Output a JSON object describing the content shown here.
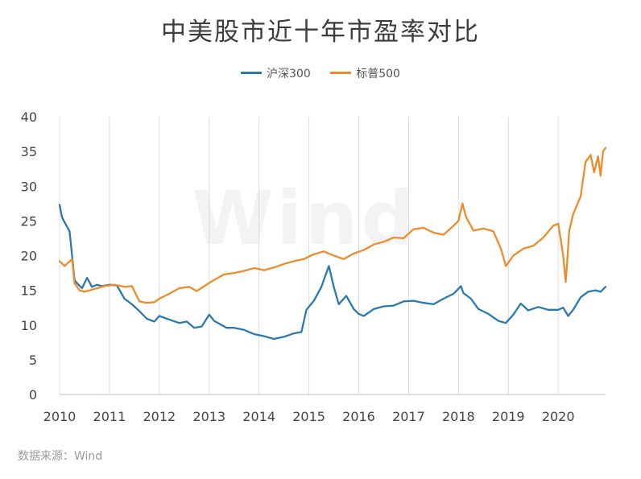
{
  "chart_data": {
    "type": "line",
    "title": "中美股市近十年市盈率对比",
    "xlabel": "",
    "ylabel": "",
    "ylim": [
      0,
      40
    ],
    "yticks": [
      0,
      5,
      10,
      15,
      20,
      25,
      30,
      35,
      40
    ],
    "xlim": [
      2010,
      2020.95
    ],
    "xticks": [
      "2010",
      "2011",
      "2012",
      "2013",
      "2014",
      "2015",
      "2016",
      "2017",
      "2018",
      "2019",
      "2020"
    ],
    "grid": "vertical",
    "legend_position": "top",
    "series": [
      {
        "name": "沪深300",
        "color": "#2a7ab0",
        "x": [
          2010.0,
          2010.05,
          2010.1,
          2010.2,
          2010.3,
          2010.35,
          2010.45,
          2010.55,
          2010.65,
          2010.75,
          2010.85,
          2011.0,
          2011.15,
          2011.3,
          2011.45,
          2011.6,
          2011.75,
          2011.9,
          2012.0,
          2012.2,
          2012.4,
          2012.55,
          2012.7,
          2012.85,
          2013.0,
          2013.1,
          2013.2,
          2013.35,
          2013.5,
          2013.7,
          2013.9,
          2014.1,
          2014.3,
          2014.5,
          2014.7,
          2014.85,
          2014.95,
          2015.1,
          2015.25,
          2015.4,
          2015.5,
          2015.6,
          2015.75,
          2015.9,
          2016.0,
          2016.1,
          2016.3,
          2016.5,
          2016.7,
          2016.9,
          2017.1,
          2017.3,
          2017.5,
          2017.7,
          2017.9,
          2018.05,
          2018.1,
          2018.25,
          2018.4,
          2018.6,
          2018.8,
          2018.95,
          2019.1,
          2019.25,
          2019.4,
          2019.6,
          2019.8,
          2020.0,
          2020.1,
          2020.2,
          2020.3,
          2020.45,
          2020.6,
          2020.75,
          2020.85,
          2020.95
        ],
        "y": [
          27.3,
          25.5,
          24.8,
          23.5,
          16.5,
          16.0,
          15.3,
          16.8,
          15.5,
          15.8,
          15.6,
          15.8,
          15.7,
          13.8,
          13.0,
          12.0,
          10.9,
          10.5,
          11.3,
          10.8,
          10.3,
          10.5,
          9.6,
          9.8,
          11.5,
          10.6,
          10.2,
          9.6,
          9.6,
          9.3,
          8.7,
          8.4,
          8.0,
          8.3,
          8.8,
          9.0,
          12.2,
          13.5,
          15.5,
          18.5,
          15.5,
          13.0,
          14.2,
          12.3,
          11.6,
          11.3,
          12.3,
          12.7,
          12.8,
          13.4,
          13.5,
          13.2,
          13.0,
          13.8,
          14.5,
          15.6,
          14.6,
          13.8,
          12.3,
          11.6,
          10.6,
          10.3,
          11.5,
          13.1,
          12.1,
          12.6,
          12.2,
          12.2,
          12.5,
          11.3,
          12.2,
          14.0,
          14.8,
          15.0,
          14.8,
          15.5
        ]
      },
      {
        "name": "标普500",
        "color": "#ec8c2c",
        "x": [
          2010.0,
          2010.1,
          2010.25,
          2010.3,
          2010.4,
          2010.5,
          2010.7,
          2010.9,
          2011.1,
          2011.3,
          2011.45,
          2011.6,
          2011.75,
          2011.9,
          2012.0,
          2012.2,
          2012.4,
          2012.6,
          2012.75,
          2012.9,
          2013.1,
          2013.3,
          2013.5,
          2013.7,
          2013.9,
          2014.1,
          2014.3,
          2014.5,
          2014.7,
          2014.9,
          2015.1,
          2015.3,
          2015.5,
          2015.7,
          2015.9,
          2016.1,
          2016.3,
          2016.5,
          2016.7,
          2016.9,
          2017.1,
          2017.3,
          2017.5,
          2017.7,
          2017.9,
          2018.0,
          2018.08,
          2018.15,
          2018.3,
          2018.5,
          2018.7,
          2018.85,
          2018.95,
          2019.1,
          2019.3,
          2019.5,
          2019.7,
          2019.9,
          2020.0,
          2020.1,
          2020.15,
          2020.18,
          2020.22,
          2020.3,
          2020.45,
          2020.55,
          2020.65,
          2020.72,
          2020.8,
          2020.85,
          2020.9,
          2020.95
        ],
        "y": [
          19.2,
          18.5,
          19.5,
          16.0,
          15.0,
          14.8,
          15.2,
          15.6,
          15.8,
          15.5,
          15.6,
          13.4,
          13.2,
          13.3,
          13.8,
          14.5,
          15.3,
          15.5,
          14.9,
          15.6,
          16.5,
          17.3,
          17.5,
          17.8,
          18.2,
          17.9,
          18.3,
          18.8,
          19.2,
          19.5,
          20.2,
          20.6,
          20.0,
          19.5,
          20.3,
          20.8,
          21.6,
          22.0,
          22.6,
          22.5,
          23.8,
          24.0,
          23.3,
          23.0,
          24.3,
          25.0,
          27.5,
          25.6,
          23.6,
          23.9,
          23.5,
          21.0,
          18.5,
          20.0,
          21.0,
          21.4,
          22.6,
          24.3,
          24.6,
          20.0,
          16.2,
          19.0,
          23.5,
          26.0,
          28.5,
          33.5,
          34.5,
          32.0,
          34.3,
          31.5,
          35.0,
          35.5
        ]
      }
    ]
  },
  "source_note": "数据来源：Wind",
  "watermark": "Wind"
}
